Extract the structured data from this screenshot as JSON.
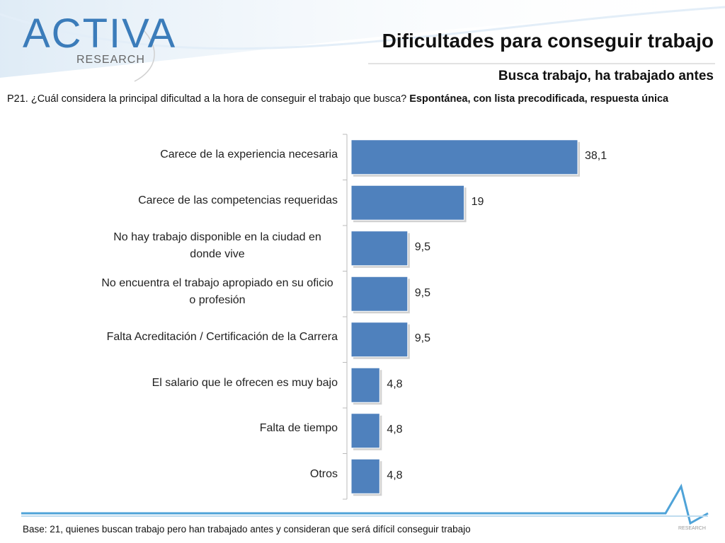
{
  "logo": {
    "name": "ACTIVA",
    "subtitle": "RESEARCH"
  },
  "footer_logo": "RESEARCH",
  "question": {
    "text": "P21. ¿Cuál considera la principal dificultad a la hora de conseguir el trabajo que busca?",
    "note": "Espontánea, con lista precodificada, respuesta única"
  },
  "footnote": "Base: 21, quienes buscan trabajo pero han trabajado antes y consideran que será difícil conseguir trabajo",
  "chart_data": {
    "type": "bar",
    "orientation": "horizontal",
    "title": "Dificultades para conseguir trabajo",
    "subtitle": "Busca trabajo, ha trabajado antes",
    "categories": [
      "Carece de la experiencia necesaria",
      "Carece de las competencias requeridas",
      "No hay trabajo disponible en la ciudad en donde vive",
      "No encuentra el trabajo apropiado en su oficio o profesión",
      "Falta Acreditación / Certificación de la Carrera",
      "El salario que le ofrecen es muy bajo",
      "Falta de tiempo",
      "Otros"
    ],
    "values": [
      38.1,
      19,
      9.5,
      9.5,
      9.5,
      4.8,
      4.8,
      4.8
    ],
    "value_labels": [
      "38,1",
      "19",
      "9,5",
      "9,5",
      "9,5",
      "4,8",
      "4,8",
      "4,8"
    ],
    "color": "#4f81bd"
  }
}
